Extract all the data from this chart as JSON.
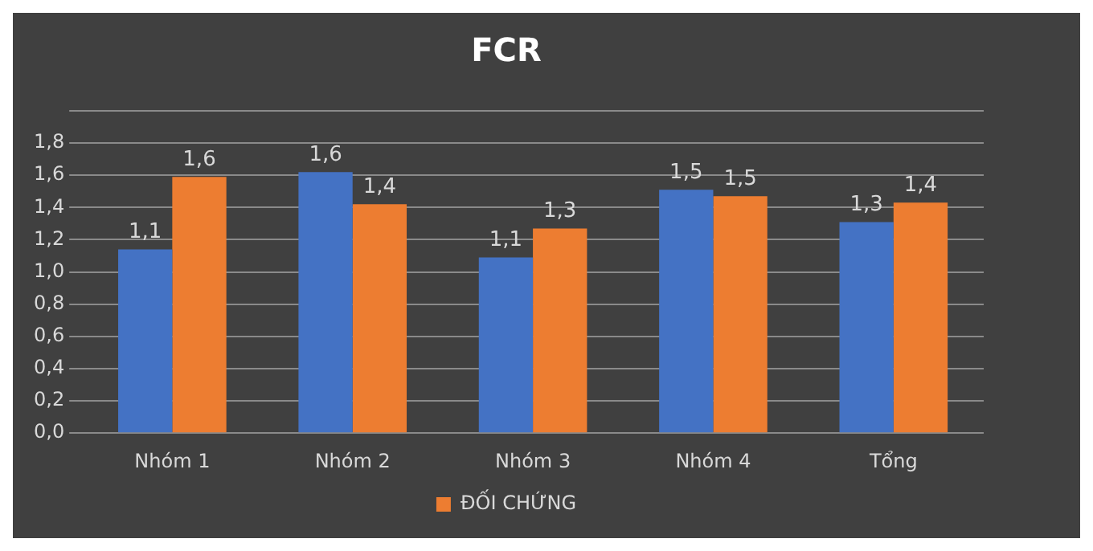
{
  "chart_data": {
    "type": "bar",
    "title": "FCR",
    "categories": [
      "Nhóm 1",
      "Nhóm 2",
      "Nhóm 3",
      "Nhóm 4",
      "Tổng"
    ],
    "series": [
      {
        "color": "#4472c4",
        "values": [
          1.14,
          1.62,
          1.09,
          1.51,
          1.31
        ],
        "value_labels": [
          "1,1",
          "1,6",
          "1,1",
          "1,5",
          "1,3"
        ]
      },
      {
        "name": "ĐỐI CHỨNG",
        "color": "#ed7d31",
        "values": [
          1.59,
          1.42,
          1.27,
          1.47,
          1.43
        ],
        "value_labels": [
          "1,6",
          "1,4",
          "1,3",
          "1,5",
          "1,4"
        ]
      }
    ],
    "ylim": [
      0,
      2
    ],
    "yticks": [
      {
        "value": 0,
        "label": "0,0"
      },
      {
        "value": 0.2,
        "label": "0,2"
      },
      {
        "value": 0.4,
        "label": "0,4"
      },
      {
        "value": 0.6,
        "label": "0,6"
      },
      {
        "value": 0.8,
        "label": "0,8"
      },
      {
        "value": 1,
        "label": "1,0"
      },
      {
        "value": 1.2,
        "label": "1,2"
      },
      {
        "value": 1.4,
        "label": "1,4"
      },
      {
        "value": 1.6,
        "label": "1,6"
      },
      {
        "value": 1.8,
        "label": "1,8"
      },
      {
        "value": 2,
        "label": null
      }
    ],
    "grid": "y",
    "legend": "bottom"
  }
}
